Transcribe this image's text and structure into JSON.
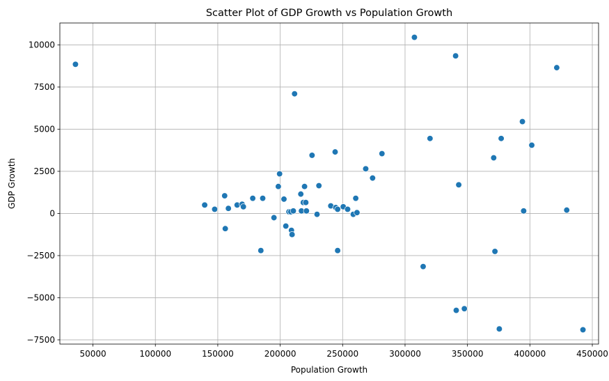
{
  "chart_data": {
    "type": "scatter",
    "title": "Scatter Plot of GDP Growth vs Population Growth",
    "xlabel": "Population Growth",
    "ylabel": "GDP Growth",
    "xlim": [
      23500,
      455000
    ],
    "ylim": [
      -7750,
      11300
    ],
    "xticks": [
      50000,
      100000,
      150000,
      200000,
      250000,
      300000,
      350000,
      400000,
      450000
    ],
    "yticks": [
      -7500,
      -5000,
      -2500,
      0,
      2500,
      5000,
      7500,
      10000
    ],
    "grid": true,
    "point_color": "#1f77b4",
    "points": [
      {
        "x": 36000,
        "y": 8850
      },
      {
        "x": 139500,
        "y": 500
      },
      {
        "x": 147500,
        "y": 250
      },
      {
        "x": 155500,
        "y": 1050
      },
      {
        "x": 156000,
        "y": -900
      },
      {
        "x": 158500,
        "y": 300
      },
      {
        "x": 165500,
        "y": 500
      },
      {
        "x": 169500,
        "y": 550
      },
      {
        "x": 170500,
        "y": 400
      },
      {
        "x": 178000,
        "y": 900
      },
      {
        "x": 184500,
        "y": -2200
      },
      {
        "x": 186000,
        "y": 900
      },
      {
        "x": 195000,
        "y": -250
      },
      {
        "x": 198500,
        "y": 1600
      },
      {
        "x": 199500,
        "y": 2350
      },
      {
        "x": 203000,
        "y": 850
      },
      {
        "x": 204500,
        "y": -750
      },
      {
        "x": 207000,
        "y": 100
      },
      {
        "x": 208500,
        "y": 100
      },
      {
        "x": 209000,
        "y": -1000
      },
      {
        "x": 209500,
        "y": -1250
      },
      {
        "x": 210500,
        "y": 150
      },
      {
        "x": 211500,
        "y": 7100
      },
      {
        "x": 216500,
        "y": 1150
      },
      {
        "x": 217000,
        "y": 150
      },
      {
        "x": 218500,
        "y": 650
      },
      {
        "x": 219500,
        "y": 1600
      },
      {
        "x": 220500,
        "y": 650
      },
      {
        "x": 221000,
        "y": 150
      },
      {
        "x": 225500,
        "y": 3450
      },
      {
        "x": 229500,
        "y": -50
      },
      {
        "x": 231000,
        "y": 1650
      },
      {
        "x": 240500,
        "y": 450
      },
      {
        "x": 244000,
        "y": 3650
      },
      {
        "x": 244500,
        "y": 350
      },
      {
        "x": 246000,
        "y": 250
      },
      {
        "x": 246000,
        "y": -2200
      },
      {
        "x": 250500,
        "y": 400
      },
      {
        "x": 254000,
        "y": 250
      },
      {
        "x": 258500,
        "y": -50
      },
      {
        "x": 260500,
        "y": 900
      },
      {
        "x": 261500,
        "y": 50
      },
      {
        "x": 268500,
        "y": 2650
      },
      {
        "x": 274000,
        "y": 2100
      },
      {
        "x": 281500,
        "y": 3550
      },
      {
        "x": 307500,
        "y": 10450
      },
      {
        "x": 314500,
        "y": -3150
      },
      {
        "x": 320000,
        "y": 4450
      },
      {
        "x": 340500,
        "y": 9350
      },
      {
        "x": 341000,
        "y": -5750
      },
      {
        "x": 343000,
        "y": 1700
      },
      {
        "x": 347500,
        "y": -5650
      },
      {
        "x": 371000,
        "y": 3300
      },
      {
        "x": 372000,
        "y": -2250
      },
      {
        "x": 375500,
        "y": -6850
      },
      {
        "x": 377000,
        "y": 4450
      },
      {
        "x": 394000,
        "y": 5450
      },
      {
        "x": 395000,
        "y": 150
      },
      {
        "x": 401500,
        "y": 4050
      },
      {
        "x": 421500,
        "y": 8650
      },
      {
        "x": 429500,
        "y": 200
      },
      {
        "x": 442500,
        "y": -6900
      }
    ]
  }
}
